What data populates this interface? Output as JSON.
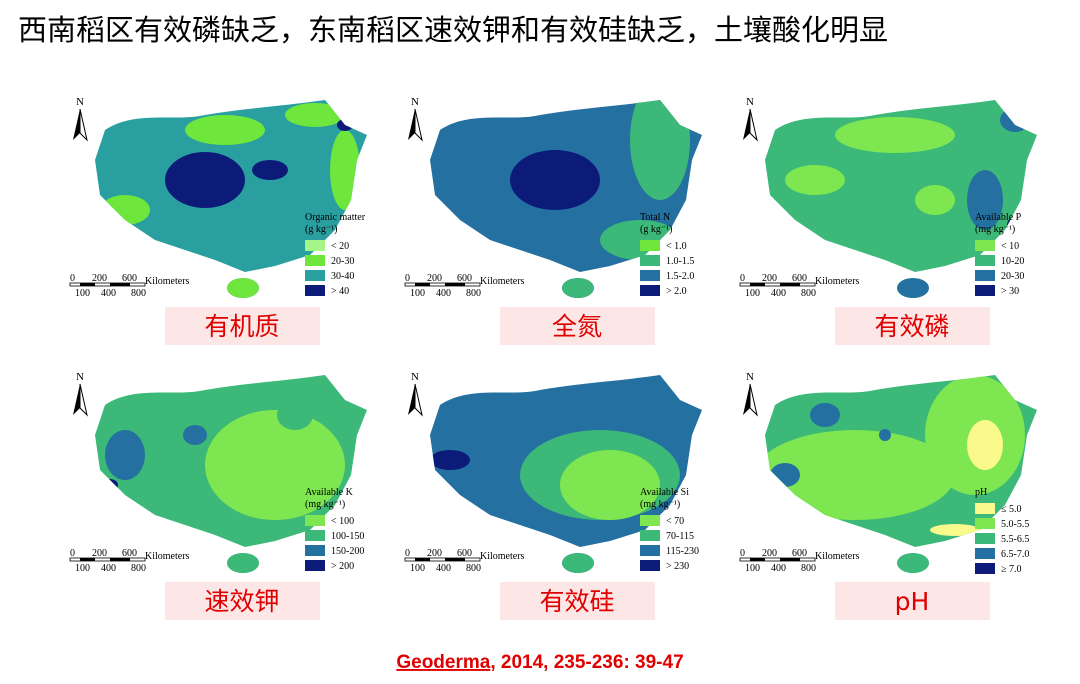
{
  "title": "西南稻区有效磷缺乏，东南稻区速效钾和有效硅缺乏，土壤酸化明显",
  "north": "N",
  "scale_bar": {
    "top": [
      "0",
      "200",
      "600"
    ],
    "unit": "Kilometers",
    "bottom": [
      "100",
      "400",
      "800"
    ]
  },
  "panels": [
    {
      "label": "有机质",
      "legend_title": "Organic matter",
      "legend_unit": "(g kg⁻¹)",
      "legend": [
        {
          "label": "< 20",
          "color": "#a6f58a"
        },
        {
          "label": "20-30",
          "color": "#6ee63c"
        },
        {
          "label": "30-40",
          "color": "#2a9fa0"
        },
        {
          "label": "> 40",
          "color": "#0c1a78"
        }
      ]
    },
    {
      "label": "全氮",
      "legend_title": "Total N",
      "legend_unit": "(g kg⁻¹)",
      "legend": [
        {
          "label": "< 1.0",
          "color": "#6ee63c"
        },
        {
          "label": "1.0-1.5",
          "color": "#3cb878"
        },
        {
          "label": "1.5-2.0",
          "color": "#2470a0"
        },
        {
          "label": "> 2.0",
          "color": "#0c1a78"
        }
      ]
    },
    {
      "label": "有效磷",
      "legend_title": "Available P",
      "legend_unit": "(mg kg⁻¹)",
      "legend": [
        {
          "label": "< 10",
          "color": "#7ee650"
        },
        {
          "label": "10-20",
          "color": "#3cb878"
        },
        {
          "label": "20-30",
          "color": "#2470a0"
        },
        {
          "label": "> 30",
          "color": "#0c1a78"
        }
      ]
    },
    {
      "label": "速效钾",
      "legend_title": "Available K",
      "legend_unit": "(mg kg⁻¹)",
      "legend": [
        {
          "label": "< 100",
          "color": "#7ee650"
        },
        {
          "label": "100-150",
          "color": "#3cb878"
        },
        {
          "label": "150-200",
          "color": "#2470a0"
        },
        {
          "label": "> 200",
          "color": "#0c1a78"
        }
      ]
    },
    {
      "label": "有效硅",
      "legend_title": "Available Si",
      "legend_unit": "(mg kg⁻¹)",
      "legend": [
        {
          "label": "< 70",
          "color": "#7ee650"
        },
        {
          "label": "70-115",
          "color": "#3cb878"
        },
        {
          "label": "115-230",
          "color": "#2470a0"
        },
        {
          "label": "> 230",
          "color": "#0c1a78"
        }
      ]
    },
    {
      "label": "pH",
      "legend_title": "pH",
      "legend_unit": null,
      "legend": [
        {
          "label": "≤ 5.0",
          "color": "#fafa8c"
        },
        {
          "label": "5.0-5.5",
          "color": "#7ee650"
        },
        {
          "label": "5.5-6.5",
          "color": "#3cb878"
        },
        {
          "label": "6.5-7.0",
          "color": "#2470a0"
        },
        {
          "label": "≥ 7.0",
          "color": "#0c1a78"
        }
      ]
    }
  ],
  "citation": {
    "journal": "Geoderma",
    "rest": ", 2014, 235-236: 39-47"
  }
}
